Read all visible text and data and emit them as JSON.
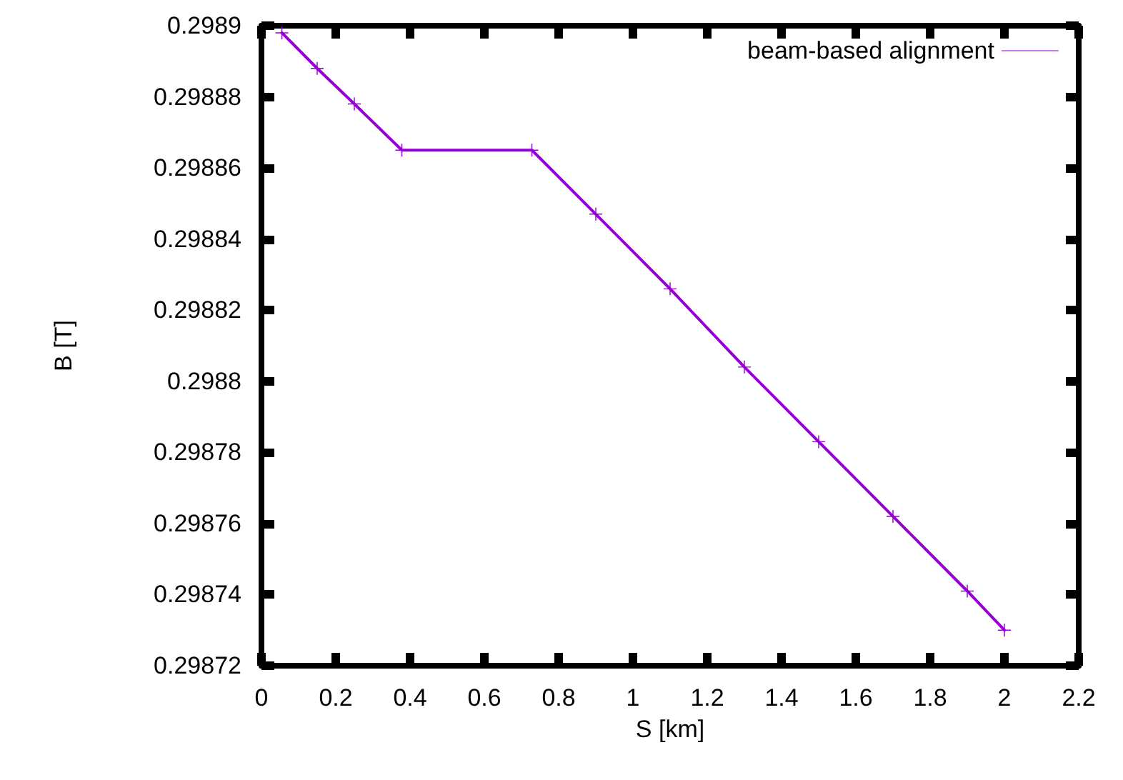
{
  "chart_data": {
    "type": "line",
    "xlabel": "S [km]",
    "ylabel": "B [T]",
    "xlim": [
      0,
      2.2
    ],
    "xticks": [
      0,
      0.2,
      0.4,
      0.6,
      0.8,
      1,
      1.2,
      1.4,
      1.6,
      1.8,
      2,
      2.2
    ],
    "ylim": [
      0.29872,
      0.2989
    ],
    "yticks": [
      0.29872,
      0.29874,
      0.29876,
      0.29878,
      0.2988,
      0.29882,
      0.29884,
      0.29886,
      0.29888,
      0.2989
    ],
    "series": [
      {
        "name": "beam-based alignment",
        "color": "#9400d3",
        "x": [
          0.055,
          0.15,
          0.25,
          0.378,
          0.728,
          0.9,
          1.1,
          1.3,
          1.5,
          1.7,
          1.9,
          2.0
        ],
        "values": [
          0.298898,
          0.298888,
          0.298878,
          0.298865,
          0.298865,
          0.298847,
          0.298826,
          0.298804,
          0.298783,
          0.298762,
          0.298741,
          0.29873
        ]
      }
    ],
    "legend": "top right",
    "grid": false,
    "marker": "cross",
    "line_style": "solid"
  }
}
